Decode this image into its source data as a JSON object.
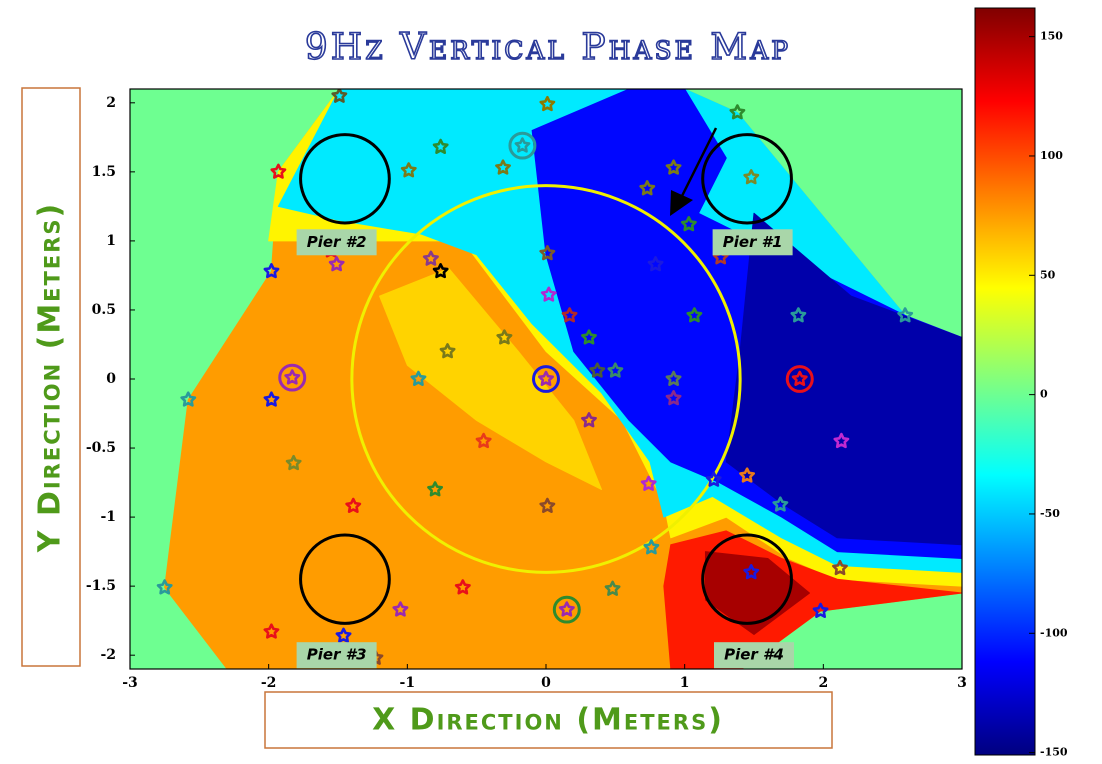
{
  "chart_data": {
    "type": "contour",
    "title": "9Hz Vertical Phase Map",
    "x_label": "X Direction (Meters)",
    "y_label": "Y Direction (Meters)",
    "xlim": [
      -3,
      3
    ],
    "ylim": [
      -2.1,
      2.1
    ],
    "xticks": [
      -3,
      -2,
      -1,
      0,
      1,
      2,
      3
    ],
    "yticks": [
      -2,
      -1.5,
      -1,
      -0.5,
      0,
      0.5,
      1,
      1.5,
      2
    ],
    "clim": [
      -151,
      162
    ],
    "cticks": [
      -150,
      -100,
      -50,
      0,
      50,
      100,
      150
    ],
    "colormap": "jet",
    "regions": [
      {
        "value": 0,
        "points": [
          [
            -3,
            -2.1
          ],
          [
            -3,
            2.1
          ],
          [
            3,
            2.1
          ],
          [
            3,
            -2.1
          ]
        ]
      },
      {
        "value": 75,
        "points": [
          [
            -2.75,
            -1.51
          ],
          [
            -2.58,
            -0.15
          ],
          [
            -1.98,
            0.78
          ],
          [
            -1.93,
            1.5
          ],
          [
            -1.49,
            2.1
          ],
          [
            1.0,
            2.1
          ],
          [
            1.38,
            1.93
          ],
          [
            2.59,
            0.46
          ],
          [
            3,
            0.3
          ],
          [
            3,
            -1.55
          ],
          [
            1.98,
            -1.68
          ],
          [
            1.41,
            -2.1
          ],
          [
            -2.3,
            -2.1
          ]
        ]
      },
      {
        "value": 48,
        "points": [
          [
            -2.0,
            1.0
          ],
          [
            -1.0,
            1.0
          ],
          [
            -0.6,
            1.0
          ],
          [
            0.0,
            0.2
          ],
          [
            0.55,
            -0.3
          ],
          [
            0.85,
            -0.9
          ],
          [
            0.9,
            -1.15
          ],
          [
            1.3,
            -1.0
          ],
          [
            1.75,
            -1.3
          ],
          [
            2.1,
            -1.45
          ],
          [
            3,
            -1.5
          ],
          [
            3,
            0.3
          ],
          [
            2.59,
            0.46
          ],
          [
            1.38,
            1.93
          ],
          [
            1.0,
            2.1
          ],
          [
            -1.49,
            2.1
          ],
          [
            -1.93,
            1.5
          ]
        ]
      },
      {
        "value": 58,
        "points": [
          [
            -1.2,
            0.6
          ],
          [
            -0.7,
            0.8
          ],
          [
            -0.2,
            0.2
          ],
          [
            0.2,
            -0.3
          ],
          [
            0.4,
            -0.8
          ],
          [
            0.0,
            -0.6
          ],
          [
            -0.5,
            -0.3
          ],
          [
            -1.0,
            0.1
          ]
        ]
      },
      {
        "value": -40,
        "points": [
          [
            -1.93,
            1.25
          ],
          [
            -1.5,
            1.15
          ],
          [
            -0.9,
            1.05
          ],
          [
            -0.5,
            0.9
          ],
          [
            -0.1,
            0.4
          ],
          [
            0.4,
            -0.1
          ],
          [
            0.75,
            -0.6
          ],
          [
            0.85,
            -1.0
          ],
          [
            1.2,
            -0.85
          ],
          [
            1.7,
            -1.15
          ],
          [
            2.1,
            -1.35
          ],
          [
            3,
            -1.4
          ],
          [
            3,
            0.3
          ],
          [
            2.59,
            0.46
          ],
          [
            1.38,
            1.93
          ],
          [
            1.0,
            2.1
          ],
          [
            -1.49,
            2.1
          ]
        ]
      },
      {
        "value": -110,
        "points": [
          [
            -0.1,
            1.8
          ],
          [
            0.6,
            2.1
          ],
          [
            1.0,
            2.1
          ],
          [
            1.3,
            1.6
          ],
          [
            1.1,
            1.2
          ],
          [
            2.59,
            0.46
          ],
          [
            3,
            0.3
          ],
          [
            3,
            -1.3
          ],
          [
            2.1,
            -1.25
          ],
          [
            1.7,
            -1.0
          ],
          [
            1.25,
            -0.75
          ],
          [
            0.9,
            -0.6
          ],
          [
            0.6,
            -0.3
          ],
          [
            0.2,
            0.2
          ],
          [
            0.0,
            0.9
          ]
        ]
      },
      {
        "value": -138,
        "points": [
          [
            1.5,
            1.2
          ],
          [
            2.2,
            0.6
          ],
          [
            3,
            0.3
          ],
          [
            3,
            -1.2
          ],
          [
            2.1,
            -1.15
          ],
          [
            1.7,
            -0.9
          ],
          [
            1.3,
            -0.6
          ],
          [
            1.4,
            0.2
          ]
        ]
      },
      {
        "value": 115,
        "points": [
          [
            0.9,
            -1.2
          ],
          [
            1.3,
            -1.1
          ],
          [
            1.7,
            -1.3
          ],
          [
            2.1,
            -1.45
          ],
          [
            3,
            -1.55
          ],
          [
            1.98,
            -1.68
          ],
          [
            1.41,
            -2.1
          ],
          [
            0.9,
            -2.1
          ],
          [
            0.85,
            -1.5
          ]
        ]
      },
      {
        "value": 150,
        "points": [
          [
            1.15,
            -1.25
          ],
          [
            1.6,
            -1.3
          ],
          [
            1.9,
            -1.55
          ],
          [
            1.5,
            -1.85
          ],
          [
            1.15,
            -1.6
          ]
        ]
      }
    ],
    "points": {
      "x": [
        -1.49,
        0.01,
        1.38,
        -1.93,
        -0.99,
        -0.76,
        -0.17,
        -0.31,
        0.92,
        0.73,
        1.48,
        1.03,
        1.26,
        0.79,
        0.01,
        -1.55,
        -1.51,
        -0.83,
        -0.76,
        -1.98,
        0.02,
        0.17,
        1.07,
        1.82,
        2.59,
        -0.3,
        0.31,
        -0.71,
        -1.83,
        -0.92,
        0,
        0.37,
        0.5,
        0.92,
        1.83,
        -2.58,
        -1.98,
        0.92,
        0.31,
        -0.45,
        2.13,
        -1.82,
        -0.8,
        0.74,
        1.21,
        1.45,
        1.69,
        -1.39,
        0.01,
        0.76,
        2.12,
        1.48,
        -2.75,
        -0.6,
        0.48,
        0.15,
        -1.05,
        1.98,
        -1.98,
        -1.46,
        -1.23
      ],
      "y": [
        2.05,
        1.99,
        1.93,
        1.5,
        1.51,
        1.68,
        1.69,
        1.53,
        1.53,
        1.38,
        1.46,
        1.12,
        0.88,
        0.83,
        0.91,
        0.93,
        0.83,
        0.87,
        0.78,
        0.78,
        0.61,
        0.46,
        0.46,
        0.46,
        0.46,
        0.3,
        0.3,
        0.2,
        0.01,
        0,
        0,
        0.06,
        0.06,
        0,
        0,
        -0.15,
        -0.15,
        -0.14,
        -0.3,
        -0.45,
        -0.45,
        -0.61,
        -0.8,
        -0.76,
        -0.73,
        -0.7,
        -0.91,
        -0.92,
        -0.92,
        -1.22,
        -1.37,
        -1.4,
        -1.51,
        -1.51,
        -1.52,
        -1.67,
        -1.67,
        -1.68,
        -1.83,
        -1.86,
        -2.02
      ],
      "colors": [
        "#5a5a2a",
        "#8b7a00",
        "#2e8b2e",
        "#e8101a",
        "#7a7a1a",
        "#2e8b2e",
        "#2a9a9a",
        "#7a7a1a",
        "#7a7a1a",
        "#7a7a1a",
        "#7a8a2a",
        "#2e8b2e",
        "#b03a2a",
        "#1a1ae0",
        "#7a5a2a",
        "#e8101a",
        "#9a2ab0",
        "#8a3a8a",
        "#000000",
        "#1a1ae0",
        "#b02ad0",
        "#b02a2a",
        "#2e8b2e",
        "#2a9a9a",
        "#2a9a9a",
        "#7a7a1a",
        "#2e8b2e",
        "#7a7a1a",
        "#9a2ab0",
        "#2a9a9a",
        "#9a2ab0",
        "#4a5a3a",
        "#3a8a6a",
        "#5a7a5a",
        "#e8101a",
        "#2a9a9a",
        "#1a1ae0",
        "#8a2a8a",
        "#8a2a8a",
        "#e83a1a",
        "#c02ad0",
        "#7a8a2a",
        "#2e8b2e",
        "#b02ad0",
        "#1a1ae0",
        "#e87a1a",
        "#2a9a9a",
        "#e8101a",
        "#8a4a2a",
        "#2a9a9a",
        "#8a4a2a",
        "#1a1ae0",
        "#2a9a9a",
        "#e8101a",
        "#4a8a4a",
        "#9a2ab0",
        "#9a2ab0",
        "#1a1ae0",
        "#e8101a",
        "#1a1ae0",
        "#8a4a2a"
      ]
    },
    "circles": [
      {
        "x": -1.45,
        "y": 1.45,
        "r": 0.32,
        "color": "#000000"
      },
      {
        "x": 1.45,
        "y": 1.45,
        "r": 0.32,
        "color": "#000000"
      },
      {
        "x": -1.45,
        "y": -1.45,
        "r": 0.32,
        "color": "#000000"
      },
      {
        "x": 1.45,
        "y": -1.45,
        "r": 0.32,
        "color": "#000000"
      },
      {
        "x": 0,
        "y": 0,
        "r": 1.4,
        "color": "#f0f000"
      },
      {
        "x": -0.17,
        "y": 1.69,
        "r": 0.09,
        "color": "#2a9a9a"
      },
      {
        "x": -1.83,
        "y": 0.01,
        "r": 0.09,
        "color": "#9a2ab0"
      },
      {
        "x": 0,
        "y": 0,
        "r": 0.09,
        "color": "#1a1ae0"
      },
      {
        "x": 1.83,
        "y": 0,
        "r": 0.09,
        "color": "#e8101a"
      },
      {
        "x": 0.15,
        "y": -1.67,
        "r": 0.09,
        "color": "#2e8b2e"
      }
    ],
    "annotations": [
      {
        "text": "Pier #2",
        "x": -1.51,
        "y": 0.99
      },
      {
        "text": "Pier #1",
        "x": 1.49,
        "y": 0.99
      },
      {
        "text": "Pier #3",
        "x": -1.51,
        "y": -2.0
      },
      {
        "text": "Pier #4",
        "x": 1.5,
        "y": -2.0
      }
    ]
  }
}
